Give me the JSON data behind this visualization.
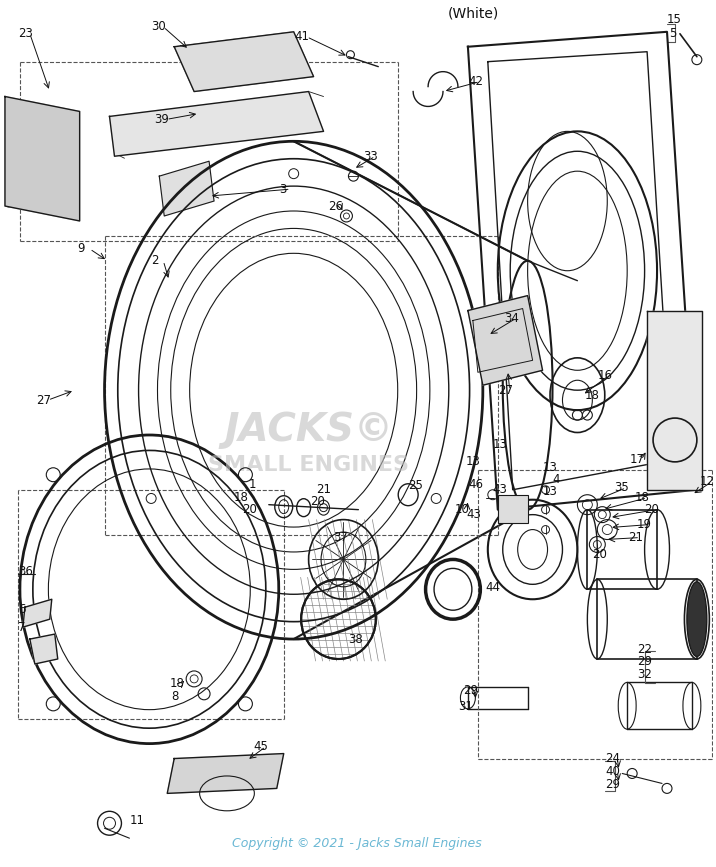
{
  "title": "(White)",
  "copyright": "Copyright © 2021 - Jacks Small Engines",
  "watermark_line1": "JACKS©",
  "watermark_line2": "SMALL ENGINES",
  "bg_color": "#ffffff",
  "watermark_color": "#c0c0c0",
  "copyright_color": "#6bb8d4",
  "fig_width": 7.16,
  "fig_height": 8.67,
  "dpi": 100,
  "line_color": "#1a1a1a",
  "dash_color": "#555555",
  "label_fontsize": 8.5,
  "title_fontsize": 10
}
